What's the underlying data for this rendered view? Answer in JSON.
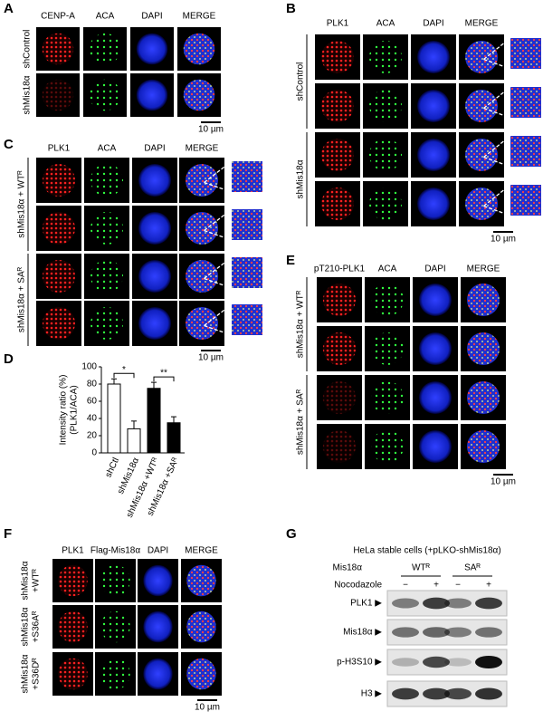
{
  "panels": {
    "A": {
      "label": "A",
      "columns": [
        "CENP-A",
        "ACA",
        "DAPI",
        "MERGE"
      ],
      "rows": [
        "shControl",
        "shMis18α"
      ],
      "scale": "10 µm"
    },
    "B": {
      "label": "B",
      "columns": [
        "PLK1",
        "ACA",
        "DAPI",
        "MERGE"
      ],
      "row_groups": [
        "shControl",
        "shMis18α"
      ],
      "scale": "10 µm"
    },
    "C": {
      "label": "C",
      "columns": [
        "PLK1",
        "ACA",
        "DAPI",
        "MERGE"
      ],
      "row_groups": [
        "shMis18α + WTᴿ",
        "shMis18α + SAᴿ"
      ],
      "scale": "10 µm"
    },
    "D": {
      "label": "D",
      "chart": {
        "type": "bar",
        "y_label": [
          "Intensity ratio (%)",
          "(PLK1/ACA)"
        ],
        "categories": [
          "shCtl",
          "shMis18α",
          "shMis18α +WTᴿ",
          "shMis18α +SAᴿ"
        ],
        "values": [
          80,
          28,
          75,
          35
        ],
        "errors": [
          6,
          9,
          7,
          7
        ],
        "colors": [
          "#ffffff",
          "#ffffff",
          "#000000",
          "#000000"
        ],
        "ylim": [
          0,
          100
        ],
        "yticks": [
          0,
          20,
          40,
          60,
          80,
          100
        ],
        "significance": [
          "*",
          "**"
        ]
      }
    },
    "E": {
      "label": "E",
      "columns": [
        "pT210-PLK1",
        "ACA",
        "DAPI",
        "MERGE"
      ],
      "row_groups": [
        "shMis18α + WTᴿ",
        "shMis18α + SAᴿ"
      ],
      "scale": "10 µm"
    },
    "F": {
      "label": "F",
      "columns": [
        "PLK1",
        "Flag-Mis18α",
        "DAPI",
        "MERGE"
      ],
      "rows": [
        [
          "shMis18α",
          "+WTᴿ"
        ],
        [
          "shMis18α",
          "+S36Aᴿ"
        ],
        [
          "shMis18α",
          "+S36Dᴿ"
        ]
      ],
      "scale": "10 µm"
    },
    "G": {
      "label": "G",
      "title": "HeLa stable cells (+pLKO-shMis18α)",
      "condition_label": "Mis18α",
      "conditions": [
        "WTᴿ",
        "SAᴿ"
      ],
      "treatment_label": "Nocodazole",
      "treatments": [
        "−",
        "+",
        "−",
        "+"
      ],
      "blots": [
        "PLK1 ▶",
        "Mis18α ▶",
        "p-H3S10 ▶",
        "H3 ▶"
      ]
    }
  }
}
